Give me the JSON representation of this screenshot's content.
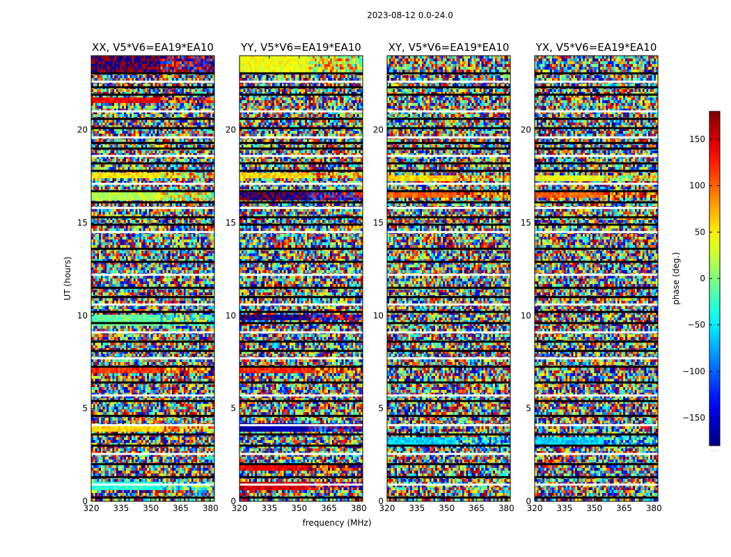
{
  "chart_data": {
    "type": "heatmap",
    "suptitle": "2023-08-12 0.0-24.0",
    "xlabel": "frequency (MHz)",
    "ylabel": "UT (hours)",
    "colorbar_label": "phase (deg.)",
    "colormap": "jet",
    "value_range": [
      -180,
      180
    ],
    "colorbar_ticks": [
      -150,
      -100,
      -50,
      0,
      50,
      100,
      150
    ],
    "colorbar_bottom_text": ".....",
    "xlim": [
      320,
      382
    ],
    "ylim": [
      0,
      24
    ],
    "xticks": [
      320,
      335,
      350,
      365,
      380
    ],
    "yticks": [
      0,
      5,
      10,
      15,
      20
    ],
    "panels": [
      {
        "title": "XX, V5*V6=EA19*EA10",
        "coherent_bands": [
          [
            23.1,
            24.0,
            180
          ],
          [
            0.6,
            1.1,
            -30
          ],
          [
            9.5,
            10.1,
            -10
          ],
          [
            16.2,
            16.6,
            20
          ],
          [
            17.4,
            17.7,
            50
          ],
          [
            3.8,
            4.0,
            60
          ],
          [
            6.9,
            7.2,
            120
          ],
          [
            21.4,
            21.7,
            140
          ]
        ]
      },
      {
        "title": "YY, V5*V6=EA19*EA10",
        "coherent_bands": [
          [
            23.1,
            24.0,
            40
          ],
          [
            0.6,
            1.1,
            150
          ],
          [
            9.7,
            10.1,
            -170
          ],
          [
            16.2,
            16.6,
            -175
          ],
          [
            17.4,
            17.7,
            60
          ],
          [
            3.8,
            4.2,
            -160
          ],
          [
            1.7,
            2.0,
            140
          ],
          [
            6.9,
            7.2,
            120
          ]
        ]
      },
      {
        "title": "XY, V5*V6=EA19*EA10",
        "coherent_bands": [
          [
            16.3,
            16.6,
            100
          ],
          [
            17.2,
            17.6,
            60
          ],
          [
            3.0,
            3.4,
            -60
          ]
        ]
      },
      {
        "title": "YX, V5*V6=EA19*EA10",
        "coherent_bands": [
          [
            16.3,
            16.6,
            100
          ],
          [
            17.2,
            17.6,
            40
          ],
          [
            3.0,
            3.4,
            -60
          ]
        ]
      }
    ],
    "flagged_ut_rows": [
      0.2,
      0.9,
      1.3,
      2.0,
      2.55,
      3.0,
      3.6,
      4.1,
      4.6,
      5.4,
      5.7,
      6.4,
      7.25,
      7.7,
      8.1,
      8.6,
      9.1,
      9.6,
      10.2,
      10.6,
      11.0,
      11.5,
      12.2,
      12.9,
      13.6,
      14.5,
      14.9,
      15.3,
      15.8,
      16.1,
      16.7,
      17.1,
      17.8,
      18.2,
      18.6,
      19.0,
      19.3,
      19.6,
      20.1,
      20.6,
      21.0,
      21.9,
      22.3,
      22.6,
      23.05
    ]
  }
}
